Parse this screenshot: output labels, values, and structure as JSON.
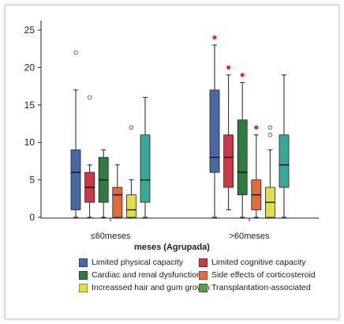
{
  "chart_data": {
    "type": "box",
    "categories": [
      "≤60meses",
      ">60meses"
    ],
    "xlabel": "meses (Agrupada)",
    "ylabel": "",
    "ylim": [
      0,
      26
    ],
    "yticks": [
      0,
      5,
      10,
      15,
      20,
      25
    ],
    "grid": false,
    "legend_position": "bottom",
    "series": [
      {
        "name": "Limited physical capacity",
        "color": "#4a67a8",
        "boxes": [
          {
            "min": 0,
            "q1": 1,
            "median": 6,
            "q3": 9,
            "max": 17,
            "outliers": [
              {
                "value": 22,
                "style": "open"
              }
            ]
          },
          {
            "min": 0,
            "q1": 6,
            "median": 8,
            "q3": 17,
            "max": 23,
            "outliers": [
              {
                "value": 24,
                "style": "filled"
              }
            ]
          }
        ]
      },
      {
        "name": "Limited cognitive capacity",
        "color": "#c73a46",
        "boxes": [
          {
            "min": 0,
            "q1": 2,
            "median": 4,
            "q3": 6,
            "max": 7,
            "outliers": [
              {
                "value": 16,
                "style": "open"
              }
            ]
          },
          {
            "min": 1,
            "q1": 4,
            "median": 8,
            "q3": 11,
            "max": 19,
            "outliers": [
              {
                "value": 20,
                "style": "filled"
              }
            ]
          }
        ]
      },
      {
        "name": "Cardiac and renal dysfunctions",
        "color": "#2f7a40",
        "boxes": [
          {
            "min": 0,
            "q1": 2,
            "median": 5,
            "q3": 8,
            "max": 9,
            "outliers": []
          },
          {
            "min": 0,
            "q1": 3,
            "median": 6,
            "q3": 13,
            "max": 18,
            "outliers": [
              {
                "value": 19,
                "style": "filled"
              }
            ]
          }
        ]
      },
      {
        "name": "Side effects of corticosteroid",
        "color": "#e56a3a",
        "boxes": [
          {
            "min": 0,
            "q1": 0,
            "median": 3,
            "q3": 4,
            "max": 7,
            "outliers": []
          },
          {
            "min": 0,
            "q1": 1,
            "median": 3,
            "q3": 5,
            "max": 11,
            "outliers": [
              {
                "value": 12,
                "style": "filled"
              }
            ]
          }
        ]
      },
      {
        "name": "Increassed hair and gum growth",
        "color": "#e4de45",
        "boxes": [
          {
            "min": 0,
            "q1": 0,
            "median": 1,
            "q3": 3,
            "max": 5,
            "outliers": [
              {
                "value": 12,
                "style": "open"
              }
            ]
          },
          {
            "min": 0,
            "q1": 0,
            "median": 2,
            "q3": 4,
            "max": 9,
            "outliers": [
              {
                "value": 11,
                "style": "open"
              },
              {
                "value": 12,
                "style": "open"
              }
            ]
          }
        ]
      },
      {
        "name": "Transplantation-associated",
        "color": "#3aa896",
        "legend_color": "#5e9a4c",
        "boxes": [
          {
            "min": 0,
            "q1": 2,
            "median": 5,
            "q3": 11,
            "max": 16,
            "outliers": []
          },
          {
            "min": 0,
            "q1": 4,
            "median": 7,
            "q3": 11,
            "max": 19,
            "outliers": []
          }
        ]
      }
    ]
  }
}
